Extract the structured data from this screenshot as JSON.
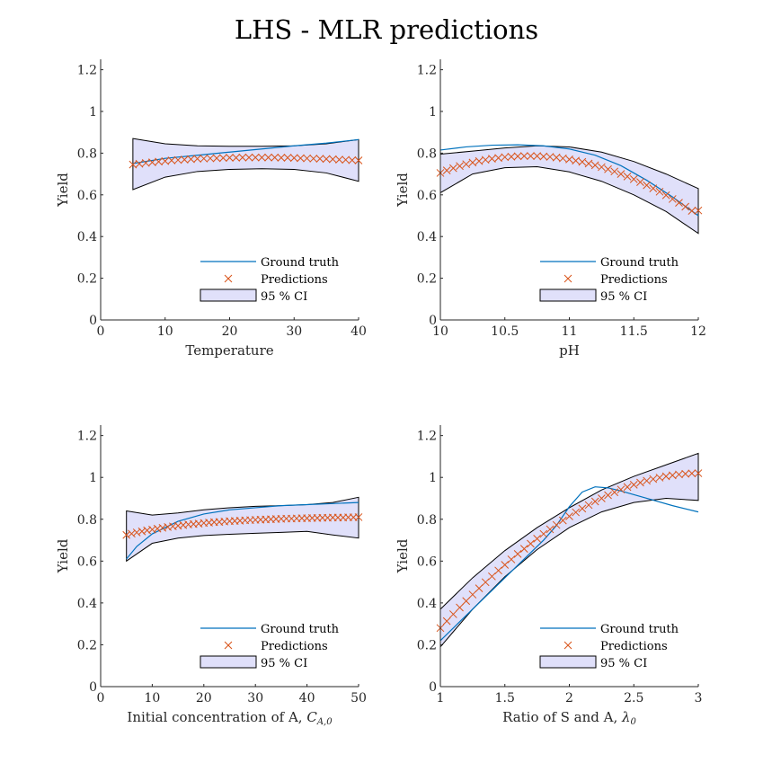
{
  "figure_title": "LHS - MLR predictions",
  "chart_data": [
    {
      "type": "line",
      "xlabel": "Temperature",
      "ylabel": "Yield",
      "xlim": [
        0,
        40
      ],
      "ylim": [
        0,
        1.25
      ],
      "xticks": [
        0,
        10,
        20,
        30,
        40
      ],
      "yticks": [
        0,
        0.2,
        0.4,
        0.6,
        0.8,
        1,
        1.2
      ],
      "xtick_labels": [
        "0",
        "10",
        "20",
        "30",
        "40"
      ],
      "ytick_labels": [
        "0",
        "0.2",
        "0.4",
        "0.6",
        "0.8",
        "1",
        "1.2"
      ],
      "legend": {
        "position": "lower-right",
        "entries": [
          "Ground truth",
          "Predictions",
          "95 % CI"
        ]
      },
      "series": [
        {
          "name": "Ground truth",
          "kind": "line",
          "color": "#0072BD",
          "x": [
            5,
            10,
            15,
            20,
            25,
            30,
            35,
            40
          ],
          "y": [
            0.75,
            0.775,
            0.79,
            0.805,
            0.82,
            0.835,
            0.848,
            0.865
          ]
        },
        {
          "name": "Predictions",
          "kind": "markers",
          "marker": "x",
          "color": "#D95319",
          "x": [
            5,
            6,
            7,
            8,
            9,
            10,
            11,
            12,
            13,
            14,
            15,
            16,
            17,
            18,
            19,
            20,
            21,
            22,
            23,
            24,
            25,
            26,
            27,
            28,
            29,
            30,
            31,
            32,
            33,
            34,
            35,
            36,
            37,
            38,
            39,
            40
          ],
          "y": [
            0.745,
            0.749,
            0.753,
            0.756,
            0.759,
            0.762,
            0.765,
            0.767,
            0.769,
            0.771,
            0.773,
            0.774,
            0.775,
            0.776,
            0.777,
            0.778,
            0.778,
            0.779,
            0.779,
            0.779,
            0.779,
            0.779,
            0.779,
            0.778,
            0.778,
            0.777,
            0.776,
            0.775,
            0.774,
            0.773,
            0.772,
            0.771,
            0.769,
            0.768,
            0.766,
            0.765
          ]
        },
        {
          "name": "95 % CI",
          "kind": "band",
          "fill": "#E0E0FA",
          "edge": "#000000",
          "x": [
            5,
            10,
            15,
            20,
            25,
            30,
            35,
            40
          ],
          "upper": [
            0.87,
            0.845,
            0.835,
            0.833,
            0.833,
            0.835,
            0.845,
            0.865
          ],
          "lower": [
            0.625,
            0.685,
            0.712,
            0.722,
            0.725,
            0.722,
            0.705,
            0.665
          ]
        }
      ]
    },
    {
      "type": "line",
      "xlabel": "pH",
      "ylabel": "Yield",
      "xlim": [
        10,
        12
      ],
      "ylim": [
        0,
        1.25
      ],
      "xticks": [
        10,
        10.5,
        11,
        11.5,
        12
      ],
      "yticks": [
        0,
        0.2,
        0.4,
        0.6,
        0.8,
        1,
        1.2
      ],
      "xtick_labels": [
        "10",
        "10.5",
        "11",
        "11.5",
        "12"
      ],
      "ytick_labels": [
        "0",
        "0.2",
        "0.4",
        "0.6",
        "0.8",
        "1",
        "1.2"
      ],
      "legend": {
        "position": "lower-right",
        "entries": [
          "Ground truth",
          "Predictions",
          "95 % CI"
        ]
      },
      "series": [
        {
          "name": "Ground truth",
          "kind": "line",
          "color": "#0072BD",
          "x": [
            10,
            10.2,
            10.4,
            10.6,
            10.8,
            11,
            11.2,
            11.4,
            11.6,
            11.8,
            12
          ],
          "y": [
            0.815,
            0.83,
            0.838,
            0.84,
            0.835,
            0.82,
            0.79,
            0.74,
            0.67,
            0.59,
            0.5
          ]
        },
        {
          "name": "Predictions",
          "kind": "markers",
          "marker": "x",
          "color": "#D95319",
          "x": [
            10,
            10.05,
            10.1,
            10.15,
            10.2,
            10.25,
            10.3,
            10.35,
            10.4,
            10.45,
            10.5,
            10.55,
            10.6,
            10.65,
            10.7,
            10.75,
            10.8,
            10.85,
            10.9,
            10.95,
            11,
            11.05,
            11.1,
            11.15,
            11.2,
            11.25,
            11.3,
            11.35,
            11.4,
            11.45,
            11.5,
            11.55,
            11.6,
            11.65,
            11.7,
            11.75,
            11.8,
            11.85,
            11.9,
            11.95,
            12
          ],
          "y": [
            0.705,
            0.717,
            0.728,
            0.738,
            0.747,
            0.755,
            0.762,
            0.768,
            0.773,
            0.777,
            0.781,
            0.783,
            0.785,
            0.786,
            0.786,
            0.786,
            0.784,
            0.782,
            0.779,
            0.775,
            0.77,
            0.764,
            0.758,
            0.75,
            0.742,
            0.733,
            0.723,
            0.712,
            0.7,
            0.688,
            0.675,
            0.661,
            0.646,
            0.631,
            0.615,
            0.598,
            0.58,
            0.562,
            0.543,
            0.523,
            0.525
          ]
        },
        {
          "name": "95 % CI",
          "kind": "band",
          "fill": "#E0E0FA",
          "edge": "#000000",
          "x": [
            10,
            10.25,
            10.5,
            10.75,
            11,
            11.25,
            11.5,
            11.75,
            12
          ],
          "upper": [
            0.795,
            0.81,
            0.825,
            0.835,
            0.83,
            0.805,
            0.76,
            0.7,
            0.63
          ],
          "lower": [
            0.61,
            0.7,
            0.73,
            0.735,
            0.71,
            0.665,
            0.6,
            0.52,
            0.415
          ]
        }
      ]
    },
    {
      "type": "line",
      "xlabel": "Initial concentration of A, ",
      "xlabel_math": "C",
      "xlabel_sub": "A,0",
      "ylabel": "Yield",
      "xlim": [
        0,
        50
      ],
      "ylim": [
        0,
        1.25
      ],
      "xticks": [
        0,
        10,
        20,
        30,
        40,
        50
      ],
      "yticks": [
        0,
        0.2,
        0.4,
        0.6,
        0.8,
        1,
        1.2
      ],
      "xtick_labels": [
        "0",
        "10",
        "20",
        "30",
        "40",
        "50"
      ],
      "ytick_labels": [
        "0",
        "0.2",
        "0.4",
        "0.6",
        "0.8",
        "1",
        "1.2"
      ],
      "legend": {
        "position": "lower-right",
        "entries": [
          "Ground truth",
          "Predictions",
          "95 % CI"
        ]
      },
      "series": [
        {
          "name": "Ground truth",
          "kind": "line",
          "color": "#0072BD",
          "x": [
            5,
            7,
            10,
            15,
            20,
            25,
            30,
            35,
            40,
            45,
            50
          ],
          "y": [
            0.61,
            0.67,
            0.73,
            0.79,
            0.825,
            0.845,
            0.855,
            0.865,
            0.87,
            0.875,
            0.88
          ]
        },
        {
          "name": "Predictions",
          "kind": "markers",
          "marker": "x",
          "color": "#D95319",
          "x": [
            5,
            6,
            7,
            8,
            9,
            10,
            11,
            12,
            13,
            14,
            15,
            16,
            17,
            18,
            19,
            20,
            21,
            22,
            23,
            24,
            25,
            26,
            27,
            28,
            29,
            30,
            31,
            32,
            33,
            34,
            35,
            36,
            37,
            38,
            39,
            40,
            41,
            42,
            43,
            44,
            45,
            46,
            47,
            48,
            49,
            50
          ],
          "y": [
            0.725,
            0.731,
            0.737,
            0.742,
            0.747,
            0.751,
            0.755,
            0.759,
            0.763,
            0.766,
            0.769,
            0.772,
            0.775,
            0.777,
            0.779,
            0.782,
            0.784,
            0.786,
            0.787,
            0.789,
            0.791,
            0.792,
            0.793,
            0.795,
            0.796,
            0.797,
            0.798,
            0.799,
            0.8,
            0.801,
            0.802,
            0.803,
            0.803,
            0.804,
            0.805,
            0.805,
            0.806,
            0.806,
            0.807,
            0.807,
            0.808,
            0.808,
            0.808,
            0.809,
            0.809,
            0.81
          ]
        },
        {
          "name": "95 % CI",
          "kind": "band",
          "fill": "#E0E0FA",
          "edge": "#000000",
          "x": [
            5,
            10,
            15,
            20,
            25,
            30,
            35,
            40,
            45,
            50
          ],
          "upper": [
            0.84,
            0.82,
            0.83,
            0.845,
            0.855,
            0.862,
            0.865,
            0.87,
            0.88,
            0.905
          ],
          "lower": [
            0.6,
            0.685,
            0.71,
            0.722,
            0.728,
            0.733,
            0.737,
            0.742,
            0.725,
            0.71
          ]
        }
      ]
    },
    {
      "type": "line",
      "xlabel": "Ratio of S and A, ",
      "xlabel_math": "λ",
      "xlabel_sub": "0",
      "ylabel": "Yield",
      "xlim": [
        1,
        3
      ],
      "ylim": [
        0,
        1.25
      ],
      "xticks": [
        1,
        1.5,
        2,
        2.5,
        3
      ],
      "yticks": [
        0,
        0.2,
        0.4,
        0.6,
        0.8,
        1,
        1.2
      ],
      "xtick_labels": [
        "1",
        "1.5",
        "2",
        "2.5",
        "3"
      ],
      "ytick_labels": [
        "0",
        "0.2",
        "0.4",
        "0.6",
        "0.8",
        "1",
        "1.2"
      ],
      "legend": {
        "position": "lower-right",
        "entries": [
          "Ground truth",
          "Predictions",
          "95 % CI"
        ]
      },
      "series": [
        {
          "name": "Ground truth",
          "kind": "line",
          "color": "#0072BD",
          "x": [
            1,
            1.2,
            1.4,
            1.6,
            1.8,
            1.9,
            2,
            2.1,
            2.2,
            2.3,
            2.4,
            2.6,
            2.8,
            3
          ],
          "y": [
            0.22,
            0.34,
            0.46,
            0.58,
            0.7,
            0.77,
            0.86,
            0.93,
            0.955,
            0.95,
            0.935,
            0.9,
            0.865,
            0.835
          ]
        },
        {
          "name": "Predictions",
          "kind": "markers",
          "marker": "x",
          "color": "#D95319",
          "x": [
            1,
            1.05,
            1.1,
            1.15,
            1.2,
            1.25,
            1.3,
            1.35,
            1.4,
            1.45,
            1.5,
            1.55,
            1.6,
            1.65,
            1.7,
            1.75,
            1.8,
            1.85,
            1.9,
            1.95,
            2,
            2.05,
            2.1,
            2.15,
            2.2,
            2.25,
            2.3,
            2.35,
            2.4,
            2.45,
            2.5,
            2.55,
            2.6,
            2.65,
            2.7,
            2.75,
            2.8,
            2.85,
            2.9,
            2.95,
            3
          ],
          "y": [
            0.28,
            0.313,
            0.346,
            0.378,
            0.409,
            0.44,
            0.47,
            0.499,
            0.527,
            0.555,
            0.582,
            0.608,
            0.634,
            0.659,
            0.683,
            0.707,
            0.73,
            0.752,
            0.773,
            0.794,
            0.814,
            0.833,
            0.851,
            0.868,
            0.885,
            0.9,
            0.915,
            0.929,
            0.942,
            0.954,
            0.965,
            0.975,
            0.984,
            0.992,
            0.999,
            1.005,
            1.01,
            1.014,
            1.017,
            1.019,
            1.02
          ]
        },
        {
          "name": "95 % CI",
          "kind": "band",
          "fill": "#E0E0FA",
          "edge": "#000000",
          "x": [
            1,
            1.25,
            1.5,
            1.75,
            2,
            2.25,
            2.5,
            2.75,
            3
          ],
          "upper": [
            0.37,
            0.52,
            0.65,
            0.76,
            0.855,
            0.94,
            1.005,
            1.06,
            1.115
          ],
          "lower": [
            0.19,
            0.37,
            0.525,
            0.655,
            0.76,
            0.835,
            0.88,
            0.9,
            0.89
          ]
        }
      ]
    }
  ]
}
